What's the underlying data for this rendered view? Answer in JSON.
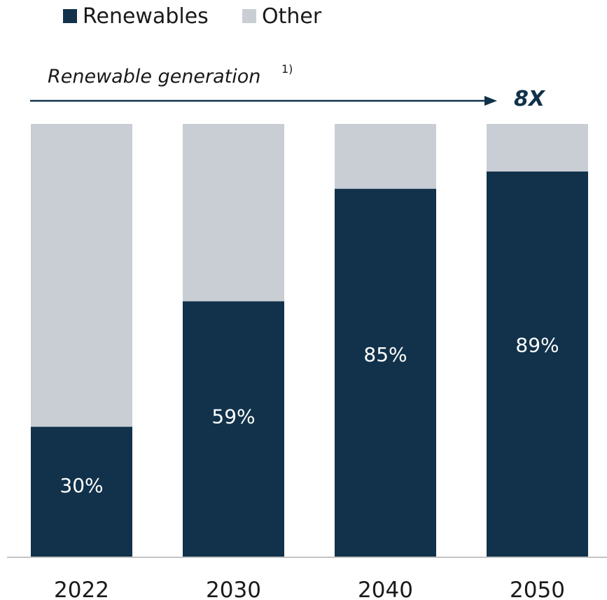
{
  "legend": {
    "renewables_label": "Renewables",
    "other_label": "Other"
  },
  "annotation": {
    "text": "Renewable generation",
    "footnote": "1)",
    "multiplier": "8X"
  },
  "colors": {
    "renewables": "#11324a",
    "other": "#c9ced5",
    "axis": "#c4c4c4",
    "arrow": "#11324a"
  },
  "chart_data": {
    "type": "bar",
    "stacked": true,
    "categories": [
      "2022",
      "2030",
      "2040",
      "2050"
    ],
    "series": [
      {
        "name": "Renewables",
        "values": [
          30,
          59,
          85,
          89
        ]
      },
      {
        "name": "Other",
        "values": [
          70,
          41,
          15,
          11
        ]
      }
    ],
    "data_labels": [
      "30%",
      "59%",
      "85%",
      "89%"
    ],
    "ylim": [
      0,
      100
    ],
    "grid": false,
    "legend_position": "top-left"
  }
}
